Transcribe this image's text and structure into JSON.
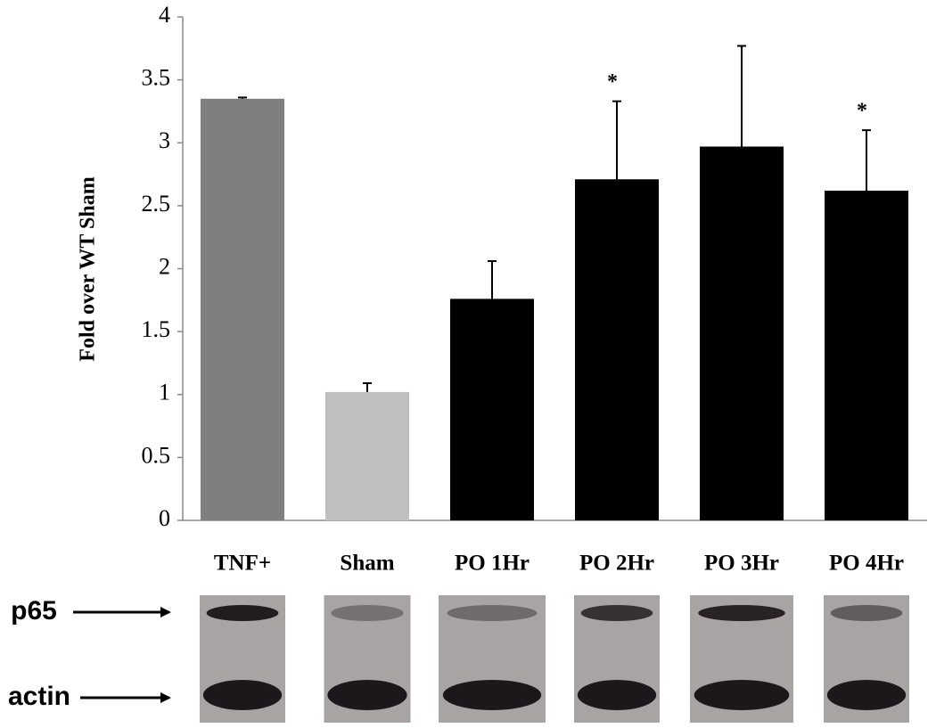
{
  "chart_data": {
    "type": "bar",
    "y_label": "Fold over WT Sham",
    "categories": [
      "TNF+",
      "Sham",
      "PO 1Hr",
      "PO 2Hr",
      "PO 3Hr",
      "PO 4Hr"
    ],
    "values": [
      3.35,
      1.02,
      1.76,
      2.71,
      2.97,
      2.62
    ],
    "errors": [
      0.01,
      0.07,
      0.3,
      0.62,
      0.8,
      0.48
    ],
    "colors": [
      "#7f7f7f",
      "#bfbfbf",
      "#000000",
      "#000000",
      "#000000",
      "#000000"
    ],
    "ylim": [
      0,
      4
    ],
    "yticks": [
      0,
      0.5,
      1,
      1.5,
      2,
      2.5,
      3,
      3.5,
      4
    ],
    "annotations": [
      {
        "text": "*",
        "category": "PO 2Hr"
      },
      {
        "text": "*",
        "category": "PO 4Hr"
      }
    ]
  },
  "blot_labels": [
    "p65",
    "actin"
  ]
}
